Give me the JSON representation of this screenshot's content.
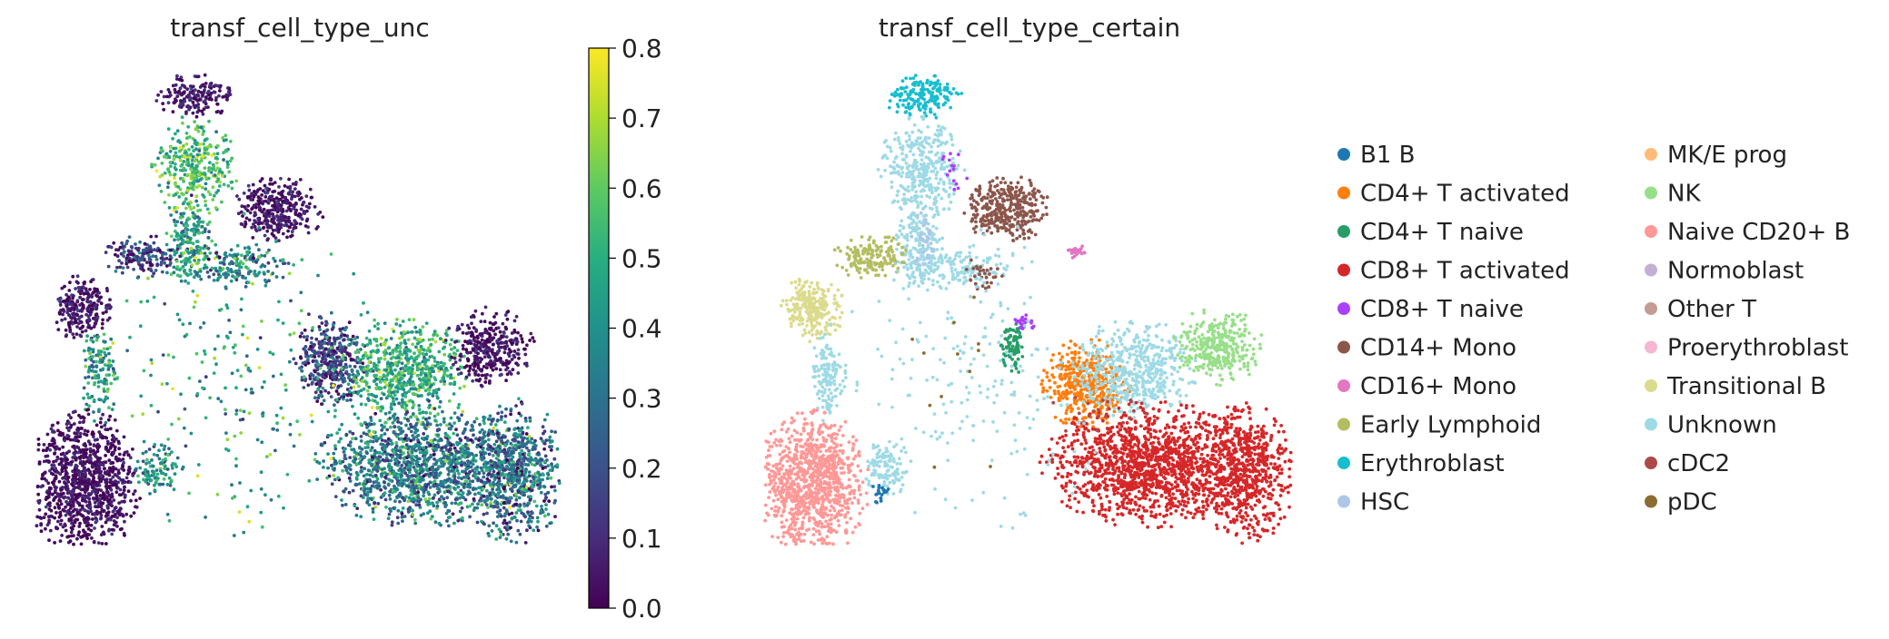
{
  "chart_data": [
    {
      "type": "scatter",
      "title": "transf_cell_type_unc",
      "xlabel": "",
      "ylabel": "",
      "grid": false,
      "colorbar": {
        "colormap": "viridis",
        "range": [
          0.0,
          0.8
        ],
        "ticks": [
          0.0,
          0.1,
          0.2,
          0.3,
          0.4,
          0.5,
          0.6,
          0.7,
          0.8
        ],
        "tick_labels": [
          "0.0",
          "0.1",
          "0.2",
          "0.3",
          "0.4",
          "0.5",
          "0.6",
          "0.7",
          "0.8"
        ],
        "placement": "right"
      },
      "regions": [
        {
          "cx": 0.3,
          "cy": 0.95,
          "rx": 0.06,
          "ry": 0.04,
          "n": 170,
          "mean": 0.05,
          "spread": 0.08
        },
        {
          "cx": 0.3,
          "cy": 0.8,
          "rx": 0.07,
          "ry": 0.09,
          "n": 330,
          "mean": 0.55,
          "spread": 0.18
        },
        {
          "cx": 0.29,
          "cy": 0.64,
          "rx": 0.04,
          "ry": 0.09,
          "n": 180,
          "mean": 0.45,
          "spread": 0.22
        },
        {
          "cx": 0.46,
          "cy": 0.71,
          "rx": 0.07,
          "ry": 0.06,
          "n": 340,
          "mean": 0.05,
          "spread": 0.08
        },
        {
          "cx": 0.2,
          "cy": 0.61,
          "rx": 0.06,
          "ry": 0.04,
          "n": 160,
          "mean": 0.15,
          "spread": 0.18
        },
        {
          "cx": 0.37,
          "cy": 0.59,
          "rx": 0.1,
          "ry": 0.04,
          "n": 180,
          "mean": 0.35,
          "spread": 0.25
        },
        {
          "cx": 0.09,
          "cy": 0.5,
          "rx": 0.05,
          "ry": 0.06,
          "n": 240,
          "mean": 0.05,
          "spread": 0.08
        },
        {
          "cx": 0.12,
          "cy": 0.36,
          "rx": 0.03,
          "ry": 0.09,
          "n": 130,
          "mean": 0.45,
          "spread": 0.2
        },
        {
          "cx": 0.09,
          "cy": 0.13,
          "rx": 0.09,
          "ry": 0.13,
          "n": 1000,
          "mean": 0.04,
          "spread": 0.07
        },
        {
          "cx": 0.23,
          "cy": 0.16,
          "rx": 0.04,
          "ry": 0.05,
          "n": 110,
          "mean": 0.38,
          "spread": 0.2
        },
        {
          "cx": 0.56,
          "cy": 0.39,
          "rx": 0.06,
          "ry": 0.08,
          "n": 380,
          "mean": 0.15,
          "spread": 0.18
        },
        {
          "cx": 0.7,
          "cy": 0.37,
          "rx": 0.1,
          "ry": 0.09,
          "n": 620,
          "mean": 0.5,
          "spread": 0.18
        },
        {
          "cx": 0.86,
          "cy": 0.42,
          "rx": 0.07,
          "ry": 0.07,
          "n": 330,
          "mean": 0.05,
          "spread": 0.08
        },
        {
          "cx": 0.73,
          "cy": 0.17,
          "rx": 0.17,
          "ry": 0.11,
          "n": 1350,
          "mean": 0.33,
          "spread": 0.25
        },
        {
          "cx": 0.91,
          "cy": 0.15,
          "rx": 0.08,
          "ry": 0.13,
          "n": 650,
          "mean": 0.28,
          "spread": 0.25
        },
        {
          "cx": 0.4,
          "cy": 0.35,
          "rx": 0.22,
          "ry": 0.3,
          "n": 260,
          "mean": 0.45,
          "spread": 0.25
        }
      ]
    },
    {
      "type": "scatter",
      "title": "transf_cell_type_certain",
      "xlabel": "",
      "ylabel": "",
      "grid": false,
      "legend": {
        "placement": "right",
        "columns": 2,
        "entries": [
          {
            "label": "B1 B",
            "color": "#1f77b4"
          },
          {
            "label": "CD4+ T activated",
            "color": "#ff7f0e"
          },
          {
            "label": "CD4+ T naive",
            "color": "#279e68"
          },
          {
            "label": "CD8+ T activated",
            "color": "#d62728"
          },
          {
            "label": "CD8+ T naive",
            "color": "#aa40fc"
          },
          {
            "label": "CD14+ Mono",
            "color": "#8c564b"
          },
          {
            "label": "CD16+ Mono",
            "color": "#e377c2"
          },
          {
            "label": "Early Lymphoid",
            "color": "#b5bd61"
          },
          {
            "label": "Erythroblast",
            "color": "#17becf"
          },
          {
            "label": "HSC",
            "color": "#aec7e8"
          },
          {
            "label": "MK/E prog",
            "color": "#ffbb78"
          },
          {
            "label": "NK",
            "color": "#98df8a"
          },
          {
            "label": "Naive CD20+ B",
            "color": "#ff9896"
          },
          {
            "label": "Normoblast",
            "color": "#c5b0d5"
          },
          {
            "label": "Other T",
            "color": "#c49c94"
          },
          {
            "label": "Proerythroblast",
            "color": "#f7b6d2"
          },
          {
            "label": "Transitional B",
            "color": "#dbdb8d"
          },
          {
            "label": "Unknown",
            "color": "#9edae5"
          },
          {
            "label": "cDC2",
            "color": "#ad494a"
          },
          {
            "label": "pDC",
            "color": "#8c6d31"
          }
        ]
      },
      "regions": [
        {
          "cx": 0.3,
          "cy": 0.95,
          "rx": 0.06,
          "ry": 0.04,
          "n": 170,
          "cat": 8
        },
        {
          "cx": 0.3,
          "cy": 0.8,
          "rx": 0.07,
          "ry": 0.09,
          "n": 330,
          "cat": 17
        },
        {
          "cx": 0.29,
          "cy": 0.64,
          "rx": 0.04,
          "ry": 0.09,
          "n": 180,
          "cat": 17
        },
        {
          "cx": 0.3,
          "cy": 0.64,
          "rx": 0.02,
          "ry": 0.06,
          "n": 40,
          "cat": 9
        },
        {
          "cx": 0.46,
          "cy": 0.71,
          "rx": 0.07,
          "ry": 0.06,
          "n": 340,
          "cat": 5
        },
        {
          "cx": 0.59,
          "cy": 0.62,
          "rx": 0.015,
          "ry": 0.015,
          "n": 25,
          "cat": 6
        },
        {
          "cx": 0.2,
          "cy": 0.61,
          "rx": 0.06,
          "ry": 0.04,
          "n": 160,
          "cat": 7
        },
        {
          "cx": 0.37,
          "cy": 0.59,
          "rx": 0.1,
          "ry": 0.04,
          "n": 140,
          "cat": 17
        },
        {
          "cx": 0.41,
          "cy": 0.57,
          "rx": 0.04,
          "ry": 0.03,
          "n": 30,
          "cat": 5
        },
        {
          "cx": 0.09,
          "cy": 0.5,
          "rx": 0.05,
          "ry": 0.06,
          "n": 240,
          "cat": 16
        },
        {
          "cx": 0.12,
          "cy": 0.36,
          "rx": 0.03,
          "ry": 0.09,
          "n": 130,
          "cat": 17
        },
        {
          "cx": 0.09,
          "cy": 0.13,
          "rx": 0.09,
          "ry": 0.13,
          "n": 1000,
          "cat": 12
        },
        {
          "cx": 0.23,
          "cy": 0.16,
          "rx": 0.04,
          "ry": 0.05,
          "n": 110,
          "cat": 17
        },
        {
          "cx": 0.22,
          "cy": 0.11,
          "rx": 0.015,
          "ry": 0.02,
          "n": 20,
          "cat": 0
        },
        {
          "cx": 0.47,
          "cy": 0.42,
          "rx": 0.02,
          "ry": 0.05,
          "n": 90,
          "cat": 2
        },
        {
          "cx": 0.49,
          "cy": 0.47,
          "rx": 0.02,
          "ry": 0.015,
          "n": 20,
          "cat": 4
        },
        {
          "cx": 0.61,
          "cy": 0.34,
          "rx": 0.07,
          "ry": 0.08,
          "n": 420,
          "cat": 1
        },
        {
          "cx": 0.7,
          "cy": 0.37,
          "rx": 0.1,
          "ry": 0.09,
          "n": 500,
          "cat": 17
        },
        {
          "cx": 0.86,
          "cy": 0.42,
          "rx": 0.07,
          "ry": 0.07,
          "n": 330,
          "cat": 11
        },
        {
          "cx": 0.73,
          "cy": 0.17,
          "rx": 0.17,
          "ry": 0.11,
          "n": 1350,
          "cat": 3
        },
        {
          "cx": 0.91,
          "cy": 0.15,
          "rx": 0.08,
          "ry": 0.13,
          "n": 650,
          "cat": 3
        },
        {
          "cx": 0.4,
          "cy": 0.35,
          "rx": 0.22,
          "ry": 0.3,
          "n": 200,
          "cat": 17
        },
        {
          "cx": 0.35,
          "cy": 0.35,
          "rx": 0.1,
          "ry": 0.2,
          "n": 12,
          "cat": 19
        },
        {
          "cx": 0.35,
          "cy": 0.8,
          "rx": 0.03,
          "ry": 0.05,
          "n": 15,
          "cat": 4
        },
        {
          "cx": 0.65,
          "cy": 0.27,
          "rx": 0.1,
          "ry": 0.05,
          "n": 20,
          "cat": 18
        }
      ]
    }
  ]
}
